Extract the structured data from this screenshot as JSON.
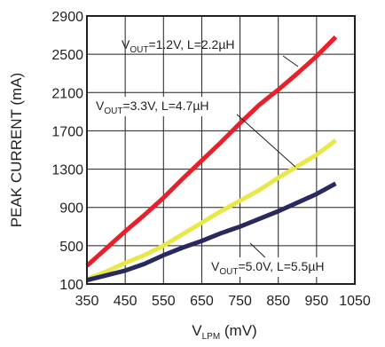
{
  "chart_data": {
    "type": "line",
    "xlabel": "V",
    "xlabel_sub": "LPM",
    "xlabel_unit": " (mV)",
    "ylabel": "PEAK CURRENT (mA)",
    "xlim": [
      350,
      1050
    ],
    "ylim": [
      100,
      2900
    ],
    "x_ticks": [
      "350",
      "450",
      "550",
      "650",
      "750",
      "850",
      "950",
      "1050"
    ],
    "y_ticks": [
      "100",
      "500",
      "900",
      "1300",
      "1700",
      "2100",
      "2500",
      "2900"
    ],
    "grid": true,
    "series": [
      {
        "label_pre": "V",
        "label_sub": "OUT",
        "label_post": "=1.2V, L=2.2µH",
        "color": "#e8202a",
        "x": [
          350,
          400,
          450,
          500,
          550,
          600,
          650,
          700,
          750,
          800,
          850,
          900,
          950,
          1000
        ],
        "y": [
          290,
          470,
          650,
          820,
          1000,
          1200,
          1390,
          1580,
          1780,
          1970,
          2130,
          2300,
          2480,
          2680
        ]
      },
      {
        "label_pre": "V",
        "label_sub": "OUT",
        "label_post": "=3.3V, L=4.7µH",
        "color": "#e9e84a",
        "x": [
          350,
          400,
          450,
          500,
          550,
          600,
          650,
          700,
          750,
          800,
          850,
          900,
          950,
          1000
        ],
        "y": [
          150,
          230,
          320,
          400,
          500,
          620,
          740,
          860,
          970,
          1080,
          1210,
          1330,
          1450,
          1600
        ]
      },
      {
        "label_pre": "V",
        "label_sub": "OUT",
        "label_post": "=5.0V, L=5.5µH",
        "color": "#27295f",
        "x": [
          350,
          400,
          450,
          500,
          550,
          600,
          650,
          700,
          750,
          800,
          850,
          900,
          950,
          1000
        ],
        "y": [
          140,
          190,
          240,
          310,
          400,
          480,
          550,
          630,
          700,
          780,
          860,
          950,
          1040,
          1150
        ]
      }
    ]
  }
}
